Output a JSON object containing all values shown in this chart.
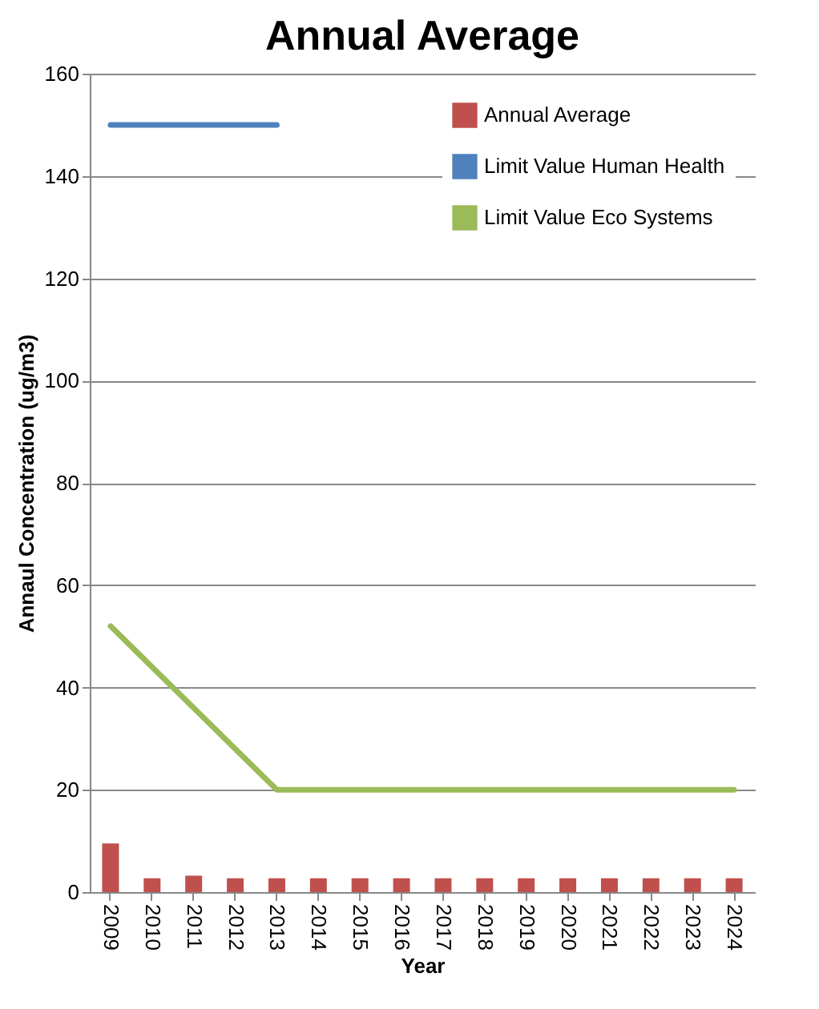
{
  "chart_data": {
    "type": "bar",
    "title": "Annual Average",
    "xlabel": "Year",
    "ylabel": "Annaul Concentration (ug/m3)",
    "categories": [
      "2009",
      "2010",
      "2011",
      "2012",
      "2013",
      "2014",
      "2015",
      "2016",
      "2017",
      "2018",
      "2019",
      "2020",
      "2021",
      "2022",
      "2023",
      "2024"
    ],
    "series": [
      {
        "name": "Annual Average",
        "color": "#c0504d",
        "values": [
          9.5,
          2.7,
          3.2,
          2.7,
          2.7,
          2.7,
          2.7,
          2.7,
          2.7,
          2.7,
          2.7,
          2.7,
          2.7,
          2.7,
          2.7,
          2.7
        ]
      },
      {
        "name": "Limit Value Human Health",
        "type": "line",
        "color": "#4f81bd",
        "values": [
          150,
          150,
          150,
          150,
          150,
          null,
          null,
          null,
          null,
          null,
          null,
          null,
          null,
          null,
          null,
          null
        ]
      },
      {
        "name": "Limit Value Eco Systems",
        "type": "line",
        "color": "#9bbb59",
        "values": [
          52,
          44,
          36,
          28,
          20,
          20,
          20,
          20,
          20,
          20,
          20,
          20,
          20,
          20,
          20,
          20
        ]
      }
    ],
    "ylim": [
      0,
      160
    ],
    "yticks": [
      0,
      20,
      40,
      60,
      80,
      100,
      120,
      140,
      160
    ],
    "grid": "y",
    "legend": "top right",
    "marker": "none",
    "line_style": "solid"
  }
}
